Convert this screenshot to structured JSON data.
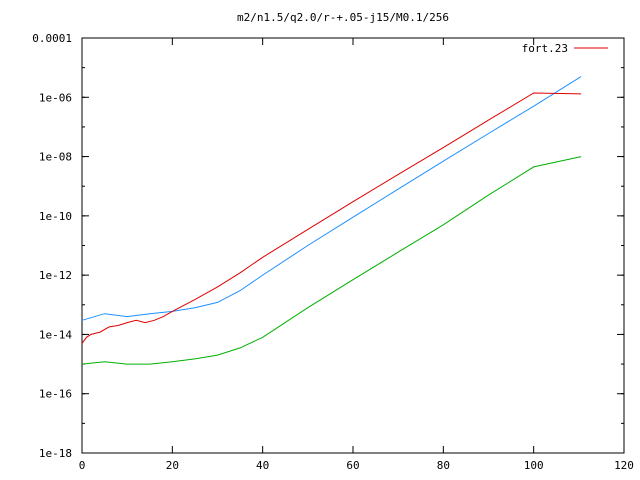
{
  "chart_data": {
    "type": "line",
    "title": "m2/n1.5/q2.0/r-+.05-j15/M0.1/256",
    "xlabel": "",
    "ylabel": "",
    "xlim": [
      0,
      120
    ],
    "ylim": [
      1e-18,
      0.0001
    ],
    "yscale": "log",
    "grid": false,
    "legend_position": "top-right",
    "x_ticks": [
      0,
      20,
      40,
      60,
      80,
      100,
      120
    ],
    "x_tick_labels": [
      "0",
      "20",
      "40",
      "60",
      "80",
      "100",
      "120"
    ],
    "y_ticks": [
      1e-18,
      1e-16,
      1e-14,
      1e-12,
      1e-10,
      1e-08,
      1e-06,
      0.0001
    ],
    "y_tick_labels": [
      "1e-18",
      "1e-16",
      "1e-14",
      "1e-12",
      "1e-10",
      "1e-08",
      "1e-06",
      "0.0001"
    ],
    "series": [
      {
        "name": "fort.23",
        "color": "#e00000",
        "x": [
          0,
          1,
          2,
          4,
          6,
          8,
          10,
          12,
          14,
          16,
          18,
          20,
          25,
          30,
          35,
          40,
          50,
          60,
          70,
          80,
          90,
          100,
          110.5
        ],
        "y": [
          5e-15,
          8e-15,
          1e-14,
          1.2e-14,
          1.8e-14,
          2e-14,
          2.5e-14,
          3e-14,
          2.5e-14,
          3e-14,
          4e-14,
          6e-14,
          1.5e-13,
          4e-13,
          1.2e-12,
          4e-12,
          3.5e-11,
          3e-10,
          2.5e-09,
          2e-08,
          1.7e-07,
          1.4e-06,
          1.3e-06
        ]
      },
      {
        "color": "#1e90ff",
        "x": [
          0,
          5,
          10,
          15,
          20,
          25,
          30,
          35,
          40,
          50,
          60,
          70,
          80,
          90,
          100,
          110.5
        ],
        "y": [
          3e-14,
          5e-14,
          4e-14,
          5e-14,
          6e-14,
          8e-14,
          1.2e-13,
          3e-13,
          1e-12,
          1e-11,
          9e-11,
          8e-10,
          7e-09,
          6e-08,
          5e-07,
          5e-06
        ]
      },
      {
        "color": "#00b000",
        "x": [
          0,
          5,
          10,
          15,
          20,
          25,
          30,
          35,
          40,
          50,
          60,
          70,
          80,
          90,
          100,
          110.5
        ],
        "y": [
          1e-15,
          1.2e-15,
          1e-15,
          1e-15,
          1.2e-15,
          1.5e-15,
          2e-15,
          3.5e-15,
          8e-15,
          8e-14,
          7e-13,
          6e-12,
          5e-11,
          5e-10,
          4.5e-09,
          1e-08
        ]
      }
    ]
  }
}
